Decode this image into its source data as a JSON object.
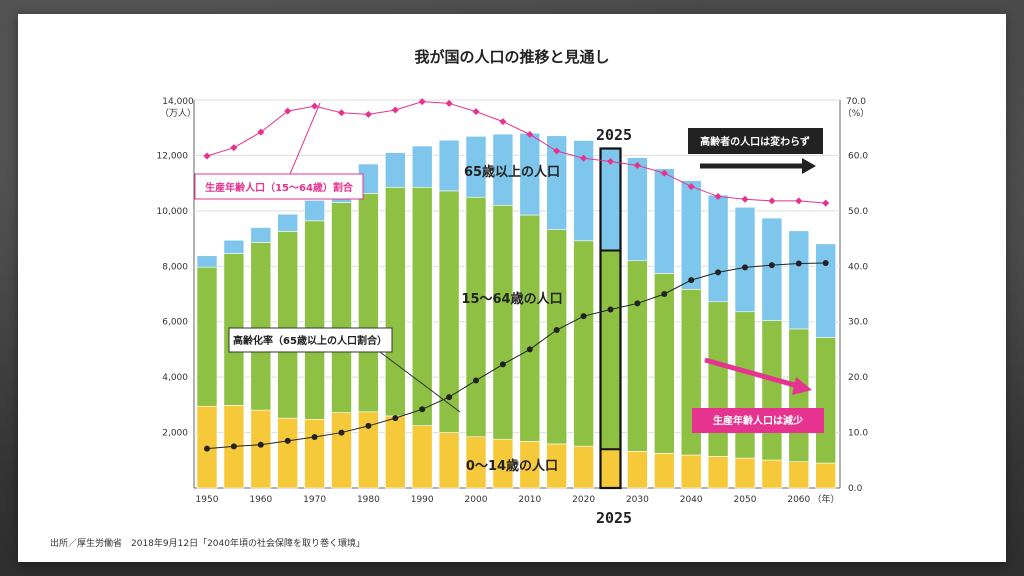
{
  "chart_data": {
    "type": "bar",
    "stacked": true,
    "title": "我が国の人口の推移と見通し",
    "y_left_unit_lines": [
      "14,000",
      "（万人）"
    ],
    "y_right_unit_lines": [
      "70.0",
      "（%）"
    ],
    "ylim_left": [
      0,
      14000
    ],
    "ylim_right": [
      0,
      70
    ],
    "y_left_ticks": [
      "2,000",
      "4,000",
      "6,000",
      "8,000",
      "10,000",
      "12,000"
    ],
    "y_right_ticks": [
      "0.0",
      "10.0",
      "20.0",
      "30.0",
      "40.0",
      "50.0",
      "60.0"
    ],
    "x": [
      1950,
      1955,
      1960,
      1965,
      1970,
      1975,
      1980,
      1985,
      1990,
      1995,
      2000,
      2005,
      2010,
      2015,
      2020,
      2025,
      2030,
      2035,
      2040,
      2045,
      2050,
      2055,
      2060,
      2065
    ],
    "x_tick_labels": [
      "1950",
      "1960",
      "1970",
      "1980",
      "1990",
      "2000",
      "2010",
      "2020",
      "2030",
      "2040",
      "2050",
      "2060"
    ],
    "x_unit": "（年）",
    "highlight_year_label": "2025",
    "series": [
      {
        "name": "0〜14歳の人口",
        "color": "#f6c93a",
        "values": [
          2950,
          2980,
          2810,
          2520,
          2480,
          2720,
          2750,
          2600,
          2250,
          2000,
          1850,
          1760,
          1680,
          1590,
          1510,
          1400,
          1320,
          1250,
          1190,
          1140,
          1080,
          1010,
          950,
          900
        ]
      },
      {
        "name": "15〜64歳の人口",
        "color": "#8dc043",
        "values": [
          5020,
          5480,
          6050,
          6740,
          7160,
          7580,
          7880,
          8250,
          8600,
          8720,
          8640,
          8440,
          8170,
          7730,
          7410,
          7170,
          6880,
          6490,
          5980,
          5580,
          5280,
          5030,
          4790,
          4530
        ]
      },
      {
        "name": "65歳以上の人口",
        "color": "#7ec6ec",
        "values": [
          410,
          480,
          540,
          620,
          740,
          890,
          1060,
          1250,
          1490,
          1830,
          2200,
          2570,
          2950,
          3390,
          3620,
          3680,
          3720,
          3780,
          3920,
          3850,
          3770,
          3700,
          3540,
          3380
        ]
      },
      {
        "name": "生産年齢人口（15〜64歳）割合",
        "color": "#e6338f",
        "axis": "right",
        "values": [
          59.9,
          61.4,
          64.2,
          68.0,
          68.9,
          67.7,
          67.4,
          68.2,
          69.7,
          69.4,
          67.9,
          66.1,
          63.8,
          60.8,
          59.5,
          58.9,
          58.2,
          56.8,
          54.4,
          52.6,
          52.1,
          51.8,
          51.8,
          51.4
        ]
      },
      {
        "name": "高齢化率（65歳以上の人口割合）",
        "color": "#222222",
        "axis": "right",
        "values": [
          7.1,
          7.5,
          7.8,
          8.5,
          9.2,
          10.0,
          11.2,
          12.6,
          14.2,
          16.4,
          19.4,
          22.3,
          25.0,
          28.5,
          31.0,
          32.2,
          33.3,
          35.0,
          37.5,
          38.9,
          39.8,
          40.2,
          40.5,
          40.6
        ]
      }
    ],
    "annotations": {
      "senior_label": "65歳以上の人口",
      "working_label": "15〜64歳の人口",
      "child_label": "0〜14歳の人口",
      "working_ratio_callout": "生産年齢人口（15〜64歳）割合",
      "aging_rate_callout": "高齢化率（65歳以上の人口割合）",
      "senior_unchanged_note": "高齢者の人口は変わらず",
      "working_decrease_note": "生産年齢人口は減少"
    },
    "source": "出所／厚生労働省　2018年9月12日「2040年頃の社会保障を取り巻く環境」"
  }
}
